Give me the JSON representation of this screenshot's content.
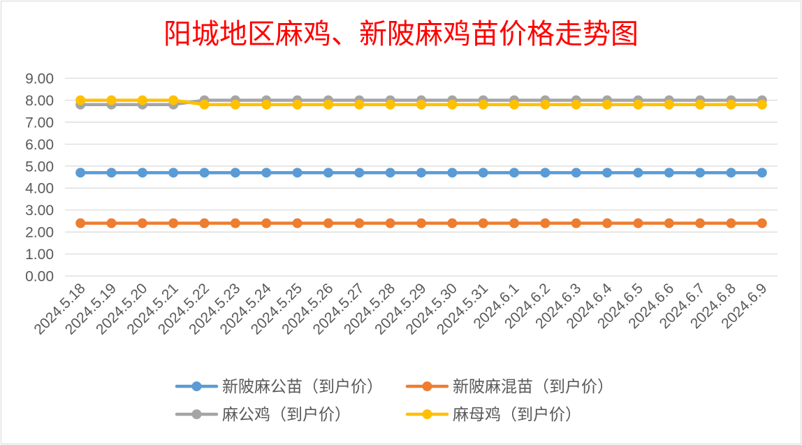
{
  "chart_data": {
    "type": "line",
    "title": "阳城地区麻鸡、新陂麻鸡苗价格走势图",
    "title_color": "#FF0000",
    "ylim": [
      0,
      9
    ],
    "yticks": [
      "0.00",
      "1.00",
      "2.00",
      "3.00",
      "4.00",
      "5.00",
      "6.00",
      "7.00",
      "8.00",
      "9.00"
    ],
    "grid": true,
    "legend_position": "bottom",
    "categories": [
      "2024.5.18",
      "2024.5.19",
      "2024.5.20",
      "2024.5.21",
      "2024.5.22",
      "2024.5.23",
      "2024.5.24",
      "2024.5.25",
      "2024.5.26",
      "2024.5.27",
      "2024.5.28",
      "2024.5.29",
      "2024.5.30",
      "2024.5.31",
      "2024.6.1",
      "2024.6.2",
      "2024.6.3",
      "2024.6.4",
      "2024.6.5",
      "2024.6.6",
      "2024.6.7",
      "2024.6.8",
      "2024.6.9"
    ],
    "series": [
      {
        "name": "新陂麻公苗（到户价）",
        "color": "#5B9BD5",
        "values": [
          4.7,
          4.7,
          4.7,
          4.7,
          4.7,
          4.7,
          4.7,
          4.7,
          4.7,
          4.7,
          4.7,
          4.7,
          4.7,
          4.7,
          4.7,
          4.7,
          4.7,
          4.7,
          4.7,
          4.7,
          4.7,
          4.7,
          4.7
        ]
      },
      {
        "name": "新陂麻混苗（到户价）",
        "color": "#ED7D31",
        "values": [
          2.4,
          2.4,
          2.4,
          2.4,
          2.4,
          2.4,
          2.4,
          2.4,
          2.4,
          2.4,
          2.4,
          2.4,
          2.4,
          2.4,
          2.4,
          2.4,
          2.4,
          2.4,
          2.4,
          2.4,
          2.4,
          2.4,
          2.4
        ]
      },
      {
        "name": "麻公鸡（到户价）",
        "color": "#A5A5A5",
        "values": [
          7.8,
          7.8,
          7.8,
          7.8,
          8.0,
          8.0,
          8.0,
          8.0,
          8.0,
          8.0,
          8.0,
          8.0,
          8.0,
          8.0,
          8.0,
          8.0,
          8.0,
          8.0,
          8.0,
          8.0,
          8.0,
          8.0,
          8.0
        ]
      },
      {
        "name": "麻母鸡（到户价）",
        "color": "#FFC000",
        "values": [
          8.0,
          8.0,
          8.0,
          8.0,
          7.8,
          7.8,
          7.8,
          7.8,
          7.8,
          7.8,
          7.8,
          7.8,
          7.8,
          7.8,
          7.8,
          7.8,
          7.8,
          7.8,
          7.8,
          7.8,
          7.8,
          7.8,
          7.8
        ]
      }
    ]
  }
}
